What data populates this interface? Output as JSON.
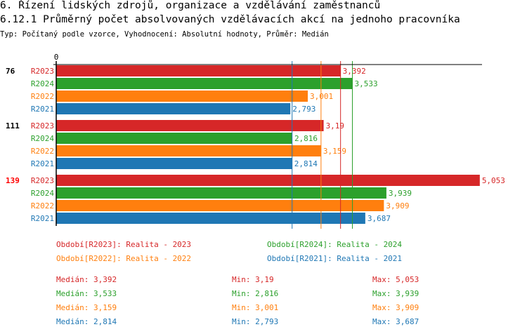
{
  "header": {
    "title": "6. Řízení lidských zdrojů, organizace a vzdělávání zaměstnanců",
    "subtitle": "6.12.1 Průměrný počet absolvovaných vzdělávacích akcí na jednoho pracovníka",
    "info": "Typ: Počítaný podle vzorce, Vyhodnocení: Absolutní hodnoty, Průměr: Medián"
  },
  "chart_data": {
    "type": "bar",
    "orientation": "horizontal",
    "xlim_min": 0,
    "x_tick_labels": [
      "0"
    ],
    "categories": [
      {
        "label": "76",
        "highlight": false
      },
      {
        "label": "111",
        "highlight": false
      },
      {
        "label": "139",
        "highlight": true
      }
    ],
    "series": [
      {
        "name": "R2023",
        "color": "#d62728",
        "values": [
          3.392,
          3.19,
          5.053
        ],
        "labels": [
          "3,392",
          "3,19",
          "5,053"
        ],
        "median": 3.392
      },
      {
        "name": "R2024",
        "color": "#2ca02c",
        "values": [
          3.533,
          2.816,
          3.939
        ],
        "labels": [
          "3,533",
          "2,816",
          "3,939"
        ],
        "median": 3.533
      },
      {
        "name": "R2022",
        "color": "#ff7f0e",
        "values": [
          3.001,
          3.159,
          3.909
        ],
        "labels": [
          "3,001",
          "3,159",
          "3,909"
        ],
        "median": 3.159
      },
      {
        "name": "R2021",
        "color": "#1f77b4",
        "values": [
          2.793,
          2.814,
          3.687
        ],
        "labels": [
          "2,793",
          "2,814",
          "3,687"
        ],
        "median": 2.814
      }
    ],
    "median_lines": true,
    "highlight_color": "#ff0000"
  },
  "legend": [
    {
      "text": "Období[R2023]: Realita - 2023",
      "color": "#d62728"
    },
    {
      "text": "Období[R2024]: Realita - 2024",
      "color": "#2ca02c"
    },
    {
      "text": "Období[R2022]: Realita - 2022",
      "color": "#ff7f0e"
    },
    {
      "text": "Období[R2021]: Realita - 2021",
      "color": "#1f77b4"
    }
  ],
  "stats": [
    {
      "median": "Medián: 3,392",
      "min": "Min: 3,19",
      "max": "Max: 5,053",
      "color": "#d62728"
    },
    {
      "median": "Medián: 3,533",
      "min": "Min: 2,816",
      "max": "Max: 3,939",
      "color": "#2ca02c"
    },
    {
      "median": "Medián: 3,159",
      "min": "Min: 3,001",
      "max": "Max: 3,909",
      "color": "#ff7f0e"
    },
    {
      "median": "Medián: 2,814",
      "min": "Min: 2,793",
      "max": "Max: 3,687",
      "color": "#1f77b4"
    }
  ]
}
